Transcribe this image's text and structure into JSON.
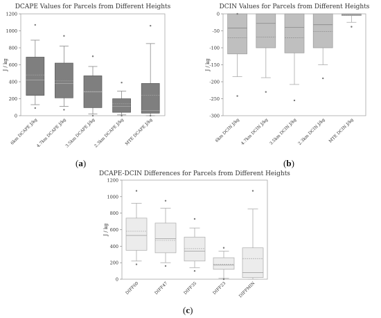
{
  "panels": {
    "a": {
      "label_open": "(",
      "label_letter": "a",
      "label_close": ")"
    },
    "b": {
      "label_open": "(",
      "label_letter": "b",
      "label_close": ")"
    },
    "c": {
      "label_open": "(",
      "label_letter": "c",
      "label_close": ")"
    }
  },
  "chart_data": [
    {
      "id": "a",
      "type": "boxplot",
      "title": "DCAPE Values for Parcels from Different Heights",
      "ylabel": "J / kg",
      "ylim": [
        0,
        1200
      ],
      "yticks": [
        0,
        200,
        400,
        600,
        800,
        1000,
        1200
      ],
      "categories": [
        "6km DCAPE J/kg",
        "4.7km DCAPE J/kg",
        "3.5km DCAPE J/kg",
        "2.3km DCAPE J/kg",
        "MTE DCAPE J/kg"
      ],
      "boxes": [
        {
          "whisker_low": 130,
          "q1": 240,
          "median": 420,
          "q3": 690,
          "whisker_high": 890,
          "mean": 480,
          "outliers": [
            90,
            1070
          ]
        },
        {
          "whisker_low": 110,
          "q1": 210,
          "median": 380,
          "q3": 620,
          "whisker_high": 820,
          "mean": 410,
          "outliers": [
            70,
            940
          ]
        },
        {
          "whisker_low": 20,
          "q1": 95,
          "median": 280,
          "q3": 470,
          "whisker_high": 580,
          "mean": 285,
          "outliers": [
            0,
            700
          ]
        },
        {
          "whisker_low": 10,
          "q1": 40,
          "median": 110,
          "q3": 200,
          "whisker_high": 290,
          "mean": 140,
          "outliers": [
            390,
            0
          ]
        },
        {
          "whisker_low": 0,
          "q1": 30,
          "median": 60,
          "q3": 380,
          "whisker_high": 850,
          "mean": 240,
          "outliers": [
            0,
            1060
          ]
        }
      ],
      "box_color": "#7f7f7f"
    },
    {
      "id": "b",
      "type": "boxplot",
      "title": "DCIN Values for Parcels from Different Heights",
      "ylabel": "J / kg",
      "ylim": [
        -300,
        0
      ],
      "yticks": [
        -300,
        -250,
        -200,
        -150,
        -100,
        -50,
        0
      ],
      "categories": [
        "6km DCIN J/kg",
        "4.7km DCIN J/kg",
        "3.5km DCIN J/kg",
        "2.3km DCIN J/kg",
        "MTE DCIN J/kg"
      ],
      "boxes": [
        {
          "whisker_low": -185,
          "q1": -118,
          "median": -42,
          "q3": 0,
          "whisker_high": 0,
          "mean": -70,
          "outliers": [
            -242,
            0
          ]
        },
        {
          "whisker_low": -188,
          "q1": -100,
          "median": -28,
          "q3": 0,
          "whisker_high": 0,
          "mean": -68,
          "outliers": [
            -230
          ]
        },
        {
          "whisker_low": -208,
          "q1": -115,
          "median": -40,
          "q3": 0,
          "whisker_high": 0,
          "mean": -70,
          "outliers": [
            -255
          ]
        },
        {
          "whisker_low": -150,
          "q1": -100,
          "median": -32,
          "q3": 0,
          "whisker_high": 0,
          "mean": -52,
          "outliers": [
            -190
          ]
        },
        {
          "whisker_low": -25,
          "q1": -5,
          "median": -2,
          "q3": 0,
          "whisker_high": 0,
          "mean": -4,
          "outliers": [
            -38
          ]
        }
      ],
      "box_color": "#bfbfbf"
    },
    {
      "id": "c",
      "type": "boxplot",
      "title": "DCAPE-DCIN Differences for Parcels from Different Heights",
      "ylabel": "J / kg",
      "ylim": [
        0,
        1200
      ],
      "yticks": [
        0,
        200,
        400,
        600,
        800,
        1000,
        1200
      ],
      "categories": [
        "DIFF60",
        "DIFF47",
        "DIFF35",
        "DIFF23",
        "DIFFMIN"
      ],
      "boxes": [
        {
          "whisker_low": 220,
          "q1": 350,
          "median": 530,
          "q3": 740,
          "whisker_high": 920,
          "mean": 580,
          "outliers": [
            180,
            1070
          ]
        },
        {
          "whisker_low": 200,
          "q1": 320,
          "median": 490,
          "q3": 680,
          "whisker_high": 860,
          "mean": 470,
          "outliers": [
            160,
            950
          ]
        },
        {
          "whisker_low": 140,
          "q1": 220,
          "median": 340,
          "q3": 510,
          "whisker_high": 620,
          "mean": 370,
          "outliers": [
            100,
            730
          ]
        },
        {
          "whisker_low": 10,
          "q1": 120,
          "median": 170,
          "q3": 260,
          "whisker_high": 340,
          "mean": 180,
          "outliers": [
            380,
            0
          ]
        },
        {
          "whisker_low": 0,
          "q1": 20,
          "median": 80,
          "q3": 380,
          "whisker_high": 850,
          "mean": 250,
          "outliers": [
            1070
          ]
        }
      ],
      "box_color": "#ececec"
    }
  ]
}
